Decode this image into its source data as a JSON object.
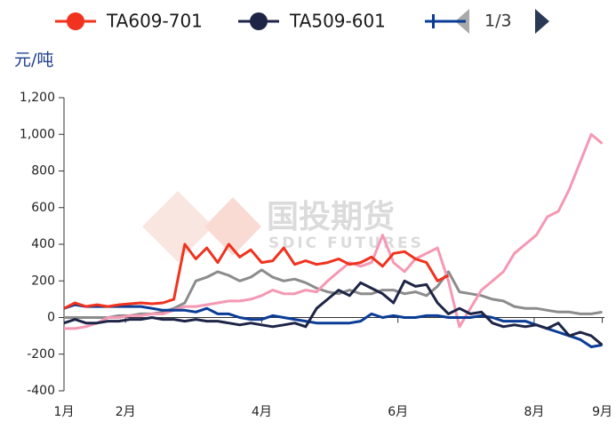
{
  "chart_data": {
    "type": "line",
    "unit_label": "元/吨",
    "watermark": {
      "name": "国投期货",
      "english": "SDIC FUTURES"
    },
    "pager": "1/3",
    "x": [
      0,
      5,
      10,
      15,
      20,
      25,
      30,
      35,
      40,
      45,
      50,
      55,
      60,
      65,
      70,
      75,
      80,
      85,
      90,
      95,
      100,
      105,
      110,
      115,
      120,
      125,
      130,
      135,
      140,
      145,
      150,
      155,
      160,
      165,
      170,
      175,
      180,
      185,
      190,
      195,
      200,
      205,
      210,
      215,
      220,
      225,
      230,
      235,
      240,
      245
    ],
    "xlim": [
      0,
      246
    ],
    "xticks": [
      {
        "value": 0,
        "label": "1月"
      },
      {
        "value": 28,
        "label": "2月"
      },
      {
        "value": 90,
        "label": "4月"
      },
      {
        "value": 152,
        "label": "6月"
      },
      {
        "value": 214,
        "label": "8月"
      },
      {
        "value": 245,
        "label": "9月"
      }
    ],
    "ylim": [
      -400,
      1200
    ],
    "yticks": [
      {
        "value": 1200,
        "label": "1,200"
      },
      {
        "value": 1000,
        "label": "1,000"
      },
      800,
      600,
      400,
      200,
      0,
      -200,
      -400
    ],
    "series": [
      {
        "name": "TA609-701",
        "color": "#f0321e",
        "values": [
          50,
          80,
          60,
          70,
          60,
          70,
          75,
          80,
          75,
          80,
          100,
          400,
          320,
          380,
          300,
          400,
          330,
          370,
          300,
          310,
          380,
          290,
          310,
          290,
          300,
          320,
          290,
          300,
          330,
          280,
          350,
          360,
          320,
          300,
          200,
          230,
          null,
          null,
          null,
          null,
          null,
          null,
          null,
          null,
          null,
          null,
          null,
          null,
          null,
          null
        ]
      },
      {
        "name": "TA509-601",
        "color": "#1e2446",
        "values": [
          -30,
          -10,
          -30,
          -30,
          -20,
          -20,
          -10,
          -10,
          0,
          -10,
          -10,
          -20,
          -10,
          -20,
          -20,
          -30,
          -40,
          -30,
          -40,
          -50,
          -40,
          -30,
          -50,
          50,
          100,
          150,
          120,
          190,
          160,
          130,
          80,
          200,
          170,
          180,
          80,
          20,
          50,
          20,
          30,
          -30,
          -50,
          -40,
          -50,
          -40,
          -60,
          -30,
          -100,
          -80,
          -100,
          -150
        ]
      },
      {
        "color": "#0a3c96",
        "values": [
          50,
          70,
          60,
          60,
          60,
          60,
          60,
          60,
          50,
          40,
          40,
          40,
          30,
          50,
          20,
          20,
          0,
          -10,
          -10,
          10,
          0,
          -10,
          -20,
          -30,
          -30,
          -30,
          -30,
          -20,
          20,
          0,
          10,
          0,
          0,
          10,
          10,
          0,
          0,
          0,
          10,
          0,
          -20,
          -20,
          -20,
          -40,
          -60,
          -80,
          -100,
          -120,
          -160,
          -150
        ]
      },
      {
        "color": "#f598b4",
        "values": [
          -60,
          -60,
          -50,
          -30,
          0,
          0,
          10,
          10,
          20,
          20,
          40,
          60,
          60,
          70,
          80,
          90,
          90,
          100,
          120,
          150,
          130,
          130,
          150,
          140,
          200,
          250,
          300,
          280,
          300,
          450,
          300,
          250,
          320,
          350,
          380,
          200,
          -50,
          50,
          150,
          200,
          250,
          350,
          400,
          450,
          550,
          580,
          700,
          850,
          1000,
          950
        ]
      },
      {
        "color": "#8c8c8c",
        "values": [
          0,
          0,
          0,
          0,
          0,
          10,
          10,
          20,
          20,
          30,
          50,
          80,
          200,
          220,
          250,
          230,
          200,
          220,
          260,
          220,
          200,
          210,
          190,
          160,
          140,
          130,
          150,
          130,
          130,
          150,
          150,
          130,
          140,
          120,
          170,
          250,
          140,
          130,
          120,
          100,
          90,
          60,
          50,
          50,
          40,
          30,
          30,
          20,
          20,
          30
        ]
      }
    ]
  }
}
